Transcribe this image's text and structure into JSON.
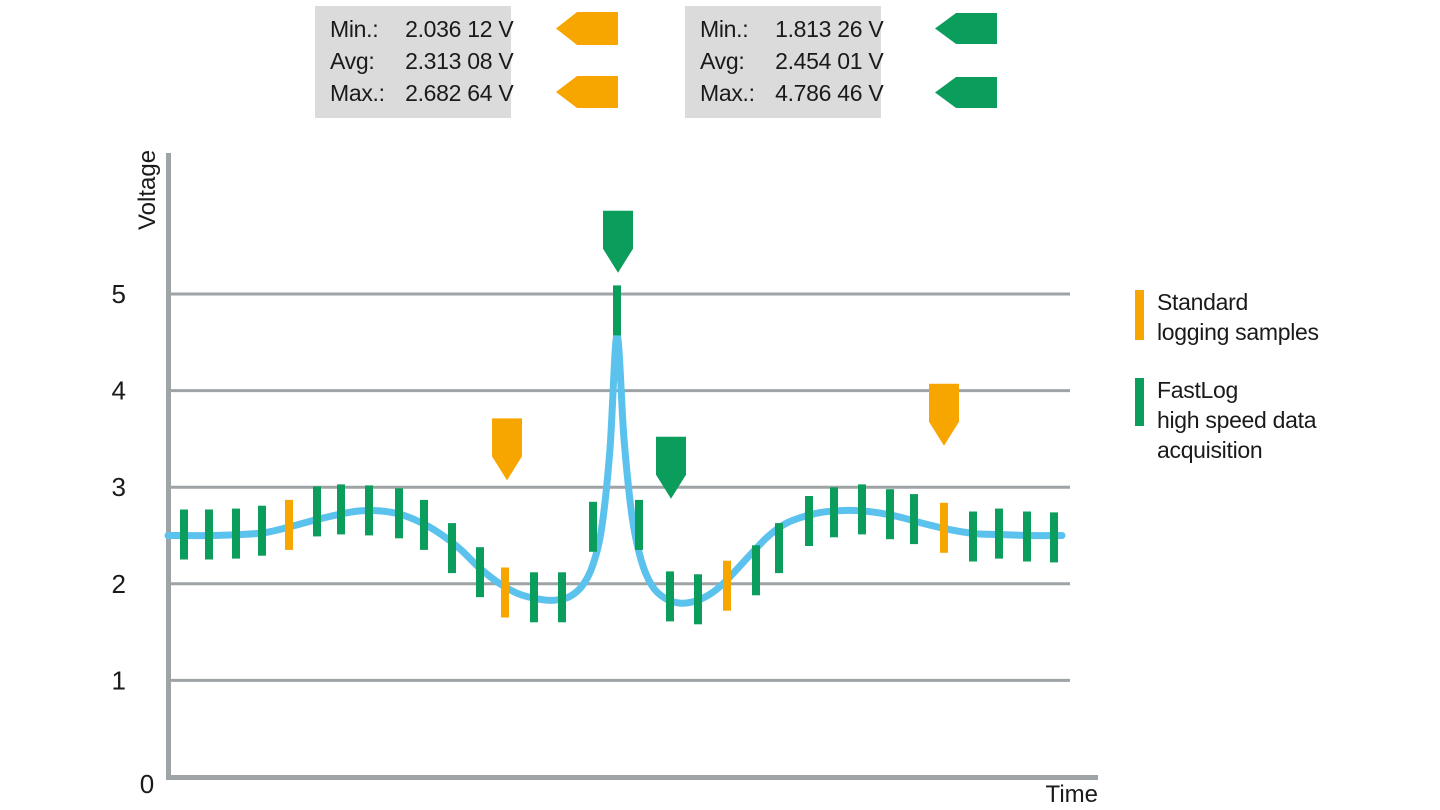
{
  "stats_boxes": [
    {
      "name": "standard-logging-stats",
      "accent": "#F7A600",
      "rows": [
        {
          "label": "Min.:",
          "value": "2.036 12 V"
        },
        {
          "label": "Avg:",
          "value": "2.313 08 V"
        },
        {
          "label": "Max.:",
          "value": "2.682 64 V"
        }
      ]
    },
    {
      "name": "fastlog-stats",
      "accent": "#0B9D5B",
      "rows": [
        {
          "label": "Min.:",
          "value": "1.813 26 V"
        },
        {
          "label": "Avg:",
          "value": "2.454 01 V"
        },
        {
          "label": "Max.:",
          "value": "4.786 46 V"
        }
      ]
    }
  ],
  "legend": {
    "items": [
      {
        "swatch_color": "#F7A600",
        "lines": [
          "Standard",
          "logging samples"
        ]
      },
      {
        "swatch_color": "#0B9D5B",
        "lines": [
          "FastLog",
          "high speed data",
          "acquisition"
        ]
      }
    ]
  },
  "chart_data": {
    "type": "line",
    "title": "",
    "xlabel": "Time",
    "ylabel": "Voltage",
    "ylim": [
      0,
      6.4
    ],
    "y_ticks": [
      0,
      1,
      2,
      3,
      4,
      5
    ],
    "grid": true,
    "legend_position": "right",
    "colors": {
      "curve": "#5BC2EE",
      "standard": "#F7A600",
      "fastlog": "#0B9D5B",
      "grid": "#9EA3A6",
      "axis": "#9EA3A6",
      "text": "#1a1a1a"
    },
    "series": [
      {
        "name": "voltage-waveform",
        "unit": "V",
        "points": [
          [
            168,
            2.5
          ],
          [
            210,
            2.5
          ],
          [
            240,
            2.51
          ],
          [
            265,
            2.53
          ],
          [
            290,
            2.59
          ],
          [
            315,
            2.66
          ],
          [
            340,
            2.72
          ],
          [
            360,
            2.755
          ],
          [
            380,
            2.755
          ],
          [
            400,
            2.72
          ],
          [
            420,
            2.64
          ],
          [
            440,
            2.52
          ],
          [
            460,
            2.36
          ],
          [
            480,
            2.16
          ],
          [
            500,
            2.0
          ],
          [
            520,
            1.89
          ],
          [
            540,
            1.84
          ],
          [
            555,
            1.83
          ],
          [
            570,
            1.87
          ],
          [
            583,
            1.99
          ],
          [
            593,
            2.2
          ],
          [
            602,
            2.6
          ],
          [
            610,
            3.4
          ],
          [
            617,
            4.57
          ],
          [
            624,
            3.5
          ],
          [
            632,
            2.7
          ],
          [
            641,
            2.25
          ],
          [
            652,
            1.98
          ],
          [
            665,
            1.85
          ],
          [
            680,
            1.8
          ],
          [
            695,
            1.82
          ],
          [
            708,
            1.88
          ],
          [
            722,
            1.99
          ],
          [
            736,
            2.14
          ],
          [
            752,
            2.32
          ],
          [
            768,
            2.49
          ],
          [
            785,
            2.62
          ],
          [
            805,
            2.7
          ],
          [
            825,
            2.745
          ],
          [
            850,
            2.76
          ],
          [
            875,
            2.74
          ],
          [
            900,
            2.69
          ],
          [
            925,
            2.62
          ],
          [
            950,
            2.56
          ],
          [
            975,
            2.52
          ],
          [
            1000,
            2.51
          ],
          [
            1030,
            2.5
          ],
          [
            1062,
            2.5
          ]
        ]
      }
    ],
    "samples": [
      {
        "x": 184,
        "v": 2.51,
        "type": "fastlog"
      },
      {
        "x": 209,
        "v": 2.51,
        "type": "fastlog"
      },
      {
        "x": 236,
        "v": 2.52,
        "type": "fastlog"
      },
      {
        "x": 262,
        "v": 2.55,
        "type": "fastlog"
      },
      {
        "x": 289,
        "v": 2.61,
        "type": "standard"
      },
      {
        "x": 317,
        "v": 2.75,
        "type": "fastlog"
      },
      {
        "x": 341,
        "v": 2.77,
        "type": "fastlog"
      },
      {
        "x": 369,
        "v": 2.76,
        "type": "fastlog"
      },
      {
        "x": 399,
        "v": 2.73,
        "type": "fastlog"
      },
      {
        "x": 424,
        "v": 2.61,
        "type": "fastlog"
      },
      {
        "x": 452,
        "v": 2.37,
        "type": "fastlog"
      },
      {
        "x": 480,
        "v": 2.12,
        "type": "fastlog"
      },
      {
        "x": 505,
        "v": 1.91,
        "type": "standard"
      },
      {
        "x": 534,
        "v": 1.86,
        "type": "fastlog"
      },
      {
        "x": 562,
        "v": 1.86,
        "type": "fastlog"
      },
      {
        "x": 593,
        "v": 2.59,
        "type": "fastlog"
      },
      {
        "x": 617,
        "v": 4.83,
        "type": "fastlog"
      },
      {
        "x": 639,
        "v": 2.61,
        "type": "fastlog"
      },
      {
        "x": 670,
        "v": 1.87,
        "type": "fastlog"
      },
      {
        "x": 698,
        "v": 1.84,
        "type": "fastlog"
      },
      {
        "x": 727,
        "v": 1.98,
        "type": "standard"
      },
      {
        "x": 756,
        "v": 2.14,
        "type": "fastlog"
      },
      {
        "x": 779,
        "v": 2.37,
        "type": "fastlog"
      },
      {
        "x": 809,
        "v": 2.65,
        "type": "fastlog"
      },
      {
        "x": 834,
        "v": 2.74,
        "type": "fastlog"
      },
      {
        "x": 862,
        "v": 2.77,
        "type": "fastlog"
      },
      {
        "x": 890,
        "v": 2.72,
        "type": "fastlog"
      },
      {
        "x": 914,
        "v": 2.67,
        "type": "fastlog"
      },
      {
        "x": 944,
        "v": 2.58,
        "type": "standard"
      },
      {
        "x": 973,
        "v": 2.49,
        "type": "fastlog"
      },
      {
        "x": 999,
        "v": 2.52,
        "type": "fastlog"
      },
      {
        "x": 1027,
        "v": 2.49,
        "type": "fastlog"
      },
      {
        "x": 1054,
        "v": 2.48,
        "type": "fastlog"
      }
    ],
    "markers": [
      {
        "x": 507,
        "tip_v": 3.07,
        "type": "standard-min"
      },
      {
        "x": 618,
        "tip_v": 5.22,
        "type": "fastlog-max"
      },
      {
        "x": 671,
        "tip_v": 2.88,
        "type": "fastlog-min"
      },
      {
        "x": 944,
        "tip_v": 3.43,
        "type": "standard-max"
      }
    ]
  }
}
